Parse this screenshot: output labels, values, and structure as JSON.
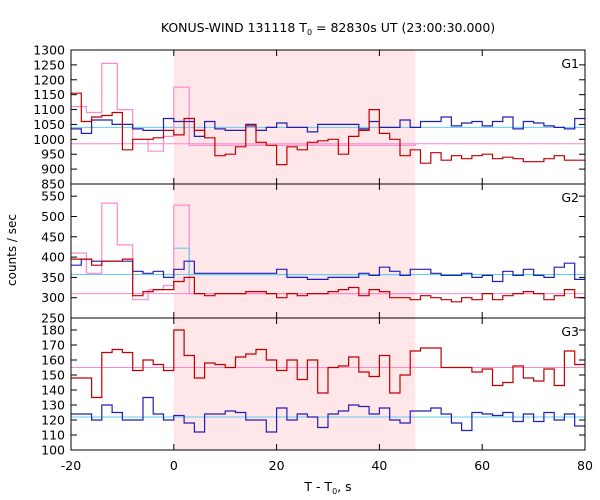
{
  "chart_data": {
    "type": "line",
    "title_main": "KONUS-WIND 131118 T",
    "title_sub": "0",
    "title_rest": " = 82830s UT (23:00:30.000)",
    "xlabel_main": "T - T",
    "xlabel_sub": "0",
    "xlabel_rest": ", s",
    "ylabel": "counts / sec",
    "xlim": [
      -20,
      80
    ],
    "xticks": [
      -20,
      0,
      20,
      40,
      60,
      80
    ],
    "shaded_interval": [
      0,
      47
    ],
    "grid": false,
    "colors": {
      "series_a": "#c00000",
      "series_b": "#2020b0",
      "bg_a": "#ff88cc",
      "bg_b": "#66ccee",
      "shade": "#ffe6e8"
    },
    "panels": [
      {
        "label": "G1",
        "ylim": [
          850,
          1300
        ],
        "yticks": [
          850,
          900,
          950,
          1000,
          1050,
          1100,
          1150,
          1200,
          1250,
          1300
        ],
        "red_bg": 985,
        "blue_bg": 1040,
        "red_coarse": {
          "edges": [
            -20,
            -17,
            -14,
            -11,
            -8,
            -5,
            -2,
            0,
            3,
            47
          ],
          "values": [
            1110,
            1090,
            1255,
            1100,
            1000,
            960,
            1010,
            1175,
            980,
            985
          ]
        },
        "blue_coarse": null,
        "red_fine": {
          "edges": [
            -20,
            -18,
            -16,
            -14,
            -12,
            -10,
            -8,
            -6,
            -4,
            -2,
            0,
            2,
            4,
            6,
            8,
            10,
            12,
            14,
            16,
            18,
            20,
            22,
            24,
            26,
            28,
            30,
            32,
            34,
            36,
            38,
            40,
            42,
            44,
            46,
            48,
            50,
            52,
            54,
            56,
            58,
            60,
            62,
            64,
            66,
            68,
            70,
            72,
            74,
            76,
            78,
            80
          ],
          "values": [
            1155,
            1060,
            1075,
            1080,
            1090,
            965,
            1000,
            1000,
            1005,
            1030,
            1015,
            1070,
            1030,
            1005,
            945,
            950,
            975,
            1045,
            990,
            980,
            915,
            975,
            965,
            990,
            995,
            1000,
            950,
            1010,
            1030,
            1100,
            1020,
            1000,
            945,
            965,
            920,
            955,
            930,
            945,
            935,
            945,
            950,
            935,
            940,
            935,
            925,
            925,
            935,
            945,
            930,
            930
          ]
        },
        "blue_fine": {
          "edges": [
            -20,
            -18,
            -16,
            -14,
            -12,
            -10,
            -8,
            -6,
            -4,
            -2,
            0,
            2,
            4,
            6,
            8,
            10,
            12,
            14,
            16,
            18,
            20,
            22,
            24,
            26,
            28,
            30,
            32,
            34,
            36,
            38,
            40,
            42,
            44,
            46,
            48,
            50,
            52,
            54,
            56,
            58,
            60,
            62,
            64,
            66,
            68,
            70,
            72,
            74,
            76,
            78,
            80
          ],
          "values": [
            1035,
            1020,
            1065,
            1065,
            1050,
            1050,
            1035,
            1030,
            1030,
            1070,
            1060,
            1060,
            1010,
            1060,
            1035,
            1030,
            1030,
            1050,
            1030,
            1040,
            1055,
            1040,
            1040,
            1025,
            1050,
            1050,
            1050,
            1050,
            1035,
            1060,
            1040,
            1040,
            1065,
            1040,
            1060,
            1060,
            1075,
            1045,
            1055,
            1060,
            1045,
            1060,
            1075,
            1035,
            1060,
            1055,
            1045,
            1040,
            1035,
            1070
          ]
        }
      },
      {
        "label": "G2",
        "ylim": [
          250,
          580
        ],
        "yticks": [
          250,
          300,
          350,
          400,
          450,
          500,
          550
        ],
        "red_bg": 310,
        "blue_bg": 357,
        "red_coarse": {
          "edges": [
            -20,
            -17,
            -14,
            -11,
            -8,
            -5,
            -2,
            0,
            3,
            47
          ],
          "values": [
            410,
            360,
            533,
            430,
            295,
            320,
            330,
            528,
            310,
            310
          ]
        },
        "blue_coarse": {
          "edges": [
            0,
            3,
            47
          ],
          "values": [
            422,
            357,
            357
          ]
        },
        "red_fine": {
          "edges": [
            -20,
            -18,
            -16,
            -14,
            -12,
            -10,
            -8,
            -6,
            -4,
            -2,
            0,
            2,
            4,
            6,
            8,
            10,
            12,
            14,
            16,
            18,
            20,
            22,
            24,
            26,
            28,
            30,
            32,
            34,
            36,
            38,
            40,
            42,
            44,
            46,
            48,
            50,
            52,
            54,
            56,
            58,
            60,
            62,
            64,
            66,
            68,
            70,
            72,
            74,
            76,
            78,
            80
          ],
          "values": [
            395,
            395,
            380,
            390,
            390,
            395,
            305,
            315,
            320,
            320,
            340,
            350,
            310,
            305,
            310,
            310,
            310,
            315,
            315,
            310,
            300,
            310,
            305,
            310,
            310,
            315,
            320,
            325,
            305,
            320,
            315,
            300,
            300,
            295,
            305,
            300,
            295,
            290,
            300,
            295,
            310,
            295,
            305,
            310,
            315,
            310,
            295,
            305,
            320,
            300
          ]
        },
        "blue_fine": {
          "edges": [
            -20,
            -18,
            -16,
            -14,
            -12,
            -10,
            -8,
            -6,
            -4,
            -2,
            0,
            2,
            4,
            6,
            8,
            10,
            12,
            14,
            16,
            18,
            20,
            22,
            24,
            26,
            28,
            30,
            32,
            34,
            36,
            38,
            40,
            42,
            44,
            46,
            48,
            50,
            52,
            54,
            56,
            58,
            60,
            62,
            64,
            66,
            68,
            70,
            72,
            74,
            76,
            78,
            80
          ],
          "values": [
            380,
            395,
            390,
            390,
            390,
            390,
            365,
            360,
            365,
            350,
            370,
            390,
            360,
            360,
            360,
            360,
            360,
            360,
            360,
            360,
            370,
            350,
            350,
            345,
            345,
            350,
            350,
            350,
            360,
            355,
            375,
            365,
            355,
            370,
            370,
            360,
            355,
            355,
            360,
            350,
            355,
            340,
            365,
            355,
            370,
            355,
            350,
            375,
            385,
            345
          ]
        }
      },
      {
        "label": "G3",
        "ylim": [
          100,
          188
        ],
        "yticks": [
          100,
          110,
          120,
          130,
          140,
          150,
          160,
          170,
          180
        ],
        "red_bg": 155,
        "blue_bg": 122,
        "red_coarse": null,
        "blue_coarse": null,
        "red_fine": {
          "edges": [
            -20,
            -18,
            -16,
            -14,
            -12,
            -10,
            -8,
            -6,
            -4,
            -2,
            0,
            2,
            4,
            6,
            8,
            10,
            12,
            14,
            16,
            18,
            20,
            22,
            24,
            26,
            28,
            30,
            32,
            34,
            36,
            38,
            40,
            42,
            44,
            46,
            48,
            50,
            52,
            54,
            56,
            58,
            60,
            62,
            64,
            66,
            68,
            70,
            72,
            74,
            76,
            78,
            80
          ],
          "values": [
            148,
            148,
            135,
            165,
            167,
            165,
            153,
            160,
            157,
            153,
            180,
            163,
            148,
            158,
            157,
            155,
            162,
            164,
            167,
            160,
            153,
            160,
            147,
            160,
            138,
            155,
            156,
            162,
            152,
            149,
            163,
            138,
            150,
            166,
            168,
            168,
            155,
            155,
            155,
            152,
            154,
            143,
            145,
            156,
            148,
            146,
            154,
            143,
            166,
            157
          ]
        },
        "blue_fine": {
          "edges": [
            -20,
            -18,
            -16,
            -14,
            -12,
            -10,
            -8,
            -6,
            -4,
            -2,
            0,
            2,
            4,
            6,
            8,
            10,
            12,
            14,
            16,
            18,
            20,
            22,
            24,
            26,
            28,
            30,
            32,
            34,
            36,
            38,
            40,
            42,
            44,
            46,
            48,
            50,
            52,
            54,
            56,
            58,
            60,
            62,
            64,
            66,
            68,
            70,
            72,
            74,
            76,
            78,
            80
          ],
          "values": [
            124,
            124,
            120,
            130,
            125,
            120,
            120,
            135,
            124,
            120,
            123,
            118,
            112,
            124,
            124,
            126,
            125,
            120,
            120,
            112,
            128,
            120,
            124,
            122,
            115,
            124,
            126,
            130,
            129,
            124,
            128,
            120,
            118,
            126,
            126,
            128,
            124,
            118,
            113,
            125,
            124,
            123,
            125,
            119,
            124,
            119,
            125,
            120,
            124,
            116
          ]
        }
      }
    ]
  }
}
